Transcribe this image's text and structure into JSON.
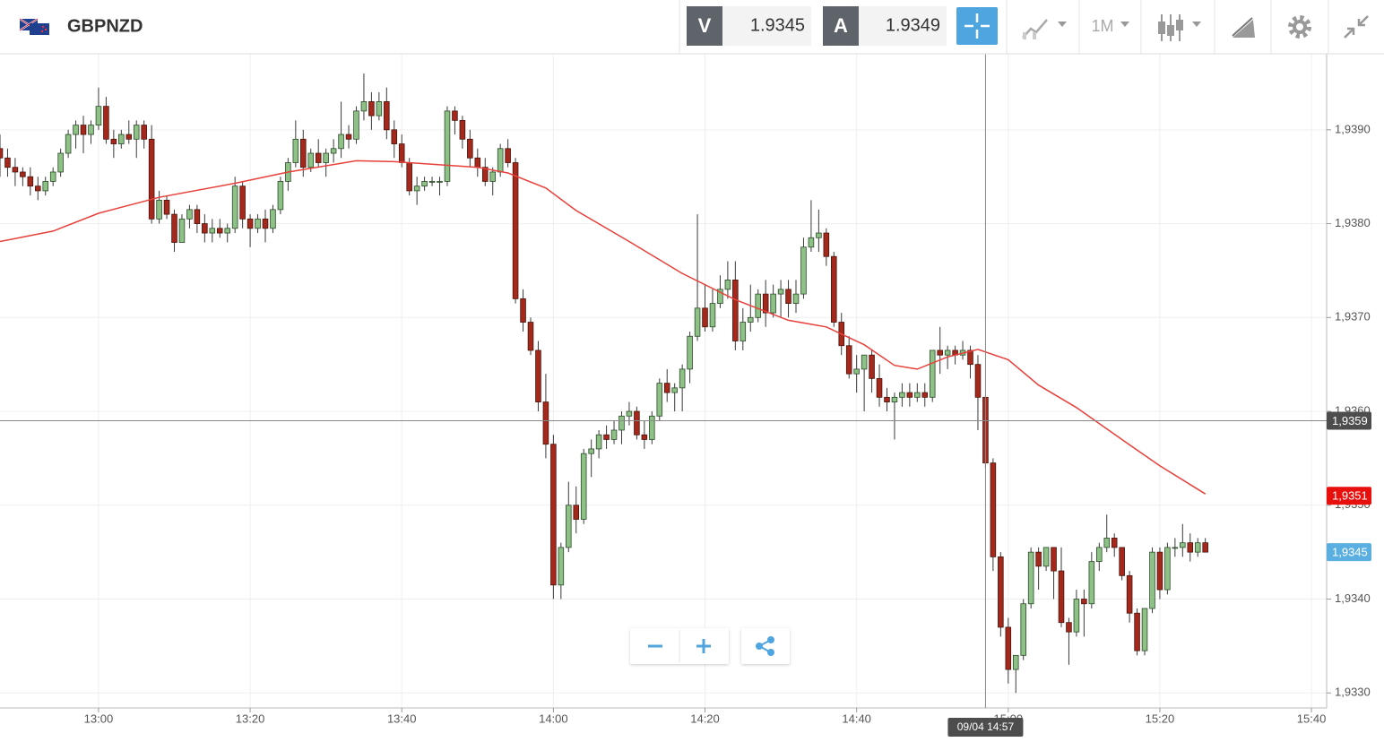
{
  "toolbar": {
    "symbol": "GBPNZD",
    "bid_label": "V",
    "bid": 1.9345,
    "ask_label": "A",
    "ask": 1.9349,
    "timeframe": "1M"
  },
  "chart_data": {
    "type": "candlestick",
    "title": "GBPNZD",
    "x": [
      "12:47",
      "12:48",
      "12:49",
      "12:50",
      "12:51",
      "12:52",
      "12:53",
      "12:54",
      "12:55",
      "12:56",
      "12:57",
      "12:58",
      "12:59",
      "13:00",
      "13:01",
      "13:02",
      "13:03",
      "13:04",
      "13:05",
      "13:06",
      "13:07",
      "13:08",
      "13:09",
      "13:10",
      "13:11",
      "13:12",
      "13:13",
      "13:14",
      "13:15",
      "13:16",
      "13:17",
      "13:18",
      "13:19",
      "13:20",
      "13:21",
      "13:22",
      "13:23",
      "13:24",
      "13:25",
      "13:26",
      "13:27",
      "13:28",
      "13:29",
      "13:30",
      "13:31",
      "13:32",
      "13:33",
      "13:34",
      "13:35",
      "13:36",
      "13:37",
      "13:38",
      "13:39",
      "13:40",
      "13:41",
      "13:42",
      "13:43",
      "13:44",
      "13:45",
      "13:46",
      "13:47",
      "13:48",
      "13:49",
      "13:50",
      "13:51",
      "13:52",
      "13:53",
      "13:54",
      "13:55",
      "13:56",
      "13:57",
      "13:58",
      "13:59",
      "14:00",
      "14:01",
      "14:02",
      "14:03",
      "14:04",
      "14:05",
      "14:06",
      "14:07",
      "14:08",
      "14:09",
      "14:10",
      "14:11",
      "14:12",
      "14:13",
      "14:14",
      "14:15",
      "14:16",
      "14:17",
      "14:18",
      "14:19",
      "14:20",
      "14:21",
      "14:22",
      "14:23",
      "14:24",
      "14:25",
      "14:26",
      "14:27",
      "14:28",
      "14:29",
      "14:30",
      "14:31",
      "14:32",
      "14:33",
      "14:34",
      "14:35",
      "14:36",
      "14:37",
      "14:38",
      "14:39",
      "14:40",
      "14:41",
      "14:42",
      "14:43",
      "14:44",
      "14:45",
      "14:46",
      "14:47",
      "14:48",
      "14:49",
      "14:50",
      "14:51",
      "14:52",
      "14:53",
      "14:54",
      "14:55",
      "14:56",
      "14:57",
      "14:58",
      "14:59",
      "15:00",
      "15:01",
      "15:02",
      "15:03",
      "15:04",
      "15:05",
      "15:06",
      "15:07",
      "15:08",
      "15:09",
      "15:10",
      "15:11",
      "15:12",
      "15:13",
      "15:14",
      "15:15",
      "15:16",
      "15:17",
      "15:18",
      "15:19",
      "15:20",
      "15:21",
      "15:22",
      "15:23",
      "15:24",
      "15:25",
      "15:26"
    ],
    "ohlc": [
      [
        1.9388,
        1.93895,
        1.9385,
        1.9387
      ],
      [
        1.9387,
        1.9388,
        1.9385,
        1.9386
      ],
      [
        1.9386,
        1.9387,
        1.9384,
        1.93855
      ],
      [
        1.93855,
        1.9386,
        1.9384,
        1.9385
      ],
      [
        1.9385,
        1.9386,
        1.9383,
        1.9384
      ],
      [
        1.9384,
        1.9385,
        1.93825,
        1.93835
      ],
      [
        1.93835,
        1.9385,
        1.9383,
        1.93845
      ],
      [
        1.93845,
        1.9386,
        1.9384,
        1.93855
      ],
      [
        1.93855,
        1.9388,
        1.9385,
        1.93875
      ],
      [
        1.93875,
        1.939,
        1.9387,
        1.93895
      ],
      [
        1.93895,
        1.9391,
        1.9388,
        1.93905
      ],
      [
        1.93905,
        1.93915,
        1.93875,
        1.93895
      ],
      [
        1.93895,
        1.9391,
        1.93885,
        1.93905
      ],
      [
        1.93905,
        1.93945,
        1.939,
        1.93925
      ],
      [
        1.93925,
        1.93935,
        1.93885,
        1.9389
      ],
      [
        1.9389,
        1.939,
        1.9387,
        1.93885
      ],
      [
        1.93885,
        1.939,
        1.9388,
        1.93895
      ],
      [
        1.93895,
        1.9391,
        1.93885,
        1.9389
      ],
      [
        1.9389,
        1.9391,
        1.9387,
        1.93905
      ],
      [
        1.93905,
        1.9391,
        1.9388,
        1.9389
      ],
      [
        1.9389,
        1.93905,
        1.938,
        1.93805
      ],
      [
        1.93805,
        1.93835,
        1.938,
        1.93825
      ],
      [
        1.93825,
        1.9383,
        1.93805,
        1.9381
      ],
      [
        1.9381,
        1.93815,
        1.9377,
        1.9378
      ],
      [
        1.9378,
        1.9381,
        1.9378,
        1.93805
      ],
      [
        1.93805,
        1.9382,
        1.93795,
        1.93815
      ],
      [
        1.93815,
        1.9382,
        1.9379,
        1.938
      ],
      [
        1.938,
        1.9381,
        1.9378,
        1.9379
      ],
      [
        1.9379,
        1.93805,
        1.9378,
        1.93795
      ],
      [
        1.93795,
        1.93805,
        1.93785,
        1.9379
      ],
      [
        1.9379,
        1.938,
        1.9378,
        1.93795
      ],
      [
        1.93795,
        1.9385,
        1.9379,
        1.9384
      ],
      [
        1.9384,
        1.93845,
        1.93795,
        1.93805
      ],
      [
        1.93805,
        1.9381,
        1.93775,
        1.93795
      ],
      [
        1.93795,
        1.9381,
        1.9379,
        1.93805
      ],
      [
        1.93805,
        1.93815,
        1.9378,
        1.93795
      ],
      [
        1.93795,
        1.9382,
        1.9379,
        1.93815
      ],
      [
        1.93815,
        1.9385,
        1.9381,
        1.93845
      ],
      [
        1.93845,
        1.9387,
        1.93835,
        1.93865
      ],
      [
        1.93865,
        1.9391,
        1.9386,
        1.9389
      ],
      [
        1.9389,
        1.939,
        1.9385,
        1.9386
      ],
      [
        1.9386,
        1.9388,
        1.93855,
        1.93875
      ],
      [
        1.93875,
        1.9389,
        1.9386,
        1.93865
      ],
      [
        1.93865,
        1.9388,
        1.9385,
        1.93875
      ],
      [
        1.93875,
        1.9389,
        1.93865,
        1.9388
      ],
      [
        1.9388,
        1.9393,
        1.9387,
        1.93895
      ],
      [
        1.93895,
        1.93905,
        1.9388,
        1.9389
      ],
      [
        1.9389,
        1.93925,
        1.93885,
        1.9392
      ],
      [
        1.9392,
        1.9396,
        1.9391,
        1.9393
      ],
      [
        1.9393,
        1.9394,
        1.939,
        1.93915
      ],
      [
        1.93915,
        1.9394,
        1.9391,
        1.9393
      ],
      [
        1.9393,
        1.93945,
        1.9389,
        1.939
      ],
      [
        1.939,
        1.9391,
        1.9387,
        1.93885
      ],
      [
        1.93885,
        1.93895,
        1.9386,
        1.93865
      ],
      [
        1.93865,
        1.9387,
        1.9383,
        1.93835
      ],
      [
        1.93835,
        1.9385,
        1.9382,
        1.9384
      ],
      [
        1.9384,
        1.9385,
        1.93835,
        1.93845
      ],
      [
        1.93845,
        1.9385,
        1.9384,
        1.93845
      ],
      [
        1.93845,
        1.9385,
        1.9383,
        1.93845
      ],
      [
        1.93845,
        1.93925,
        1.9384,
        1.9392
      ],
      [
        1.9392,
        1.93925,
        1.93895,
        1.9391
      ],
      [
        1.9391,
        1.93915,
        1.9388,
        1.9389
      ],
      [
        1.9389,
        1.939,
        1.9386,
        1.9387
      ],
      [
        1.9387,
        1.9388,
        1.9385,
        1.9386
      ],
      [
        1.9386,
        1.9387,
        1.9384,
        1.93845
      ],
      [
        1.93845,
        1.9386,
        1.9383,
        1.93855
      ],
      [
        1.93855,
        1.93885,
        1.9385,
        1.9388
      ],
      [
        1.9388,
        1.9389,
        1.9386,
        1.93865
      ],
      [
        1.93865,
        1.9387,
        1.93715,
        1.9372
      ],
      [
        1.9372,
        1.9373,
        1.93685,
        1.93695
      ],
      [
        1.93695,
        1.937,
        1.9366,
        1.93665
      ],
      [
        1.93665,
        1.93675,
        1.936,
        1.9361
      ],
      [
        1.9361,
        1.9364,
        1.9355,
        1.93565
      ],
      [
        1.93565,
        1.93575,
        1.934,
        1.93415
      ],
      [
        1.93415,
        1.9346,
        1.934,
        1.93455
      ],
      [
        1.93455,
        1.93525,
        1.9345,
        1.935
      ],
      [
        1.935,
        1.9352,
        1.9347,
        1.93485
      ],
      [
        1.93485,
        1.9356,
        1.9348,
        1.93555
      ],
      [
        1.93555,
        1.9357,
        1.9353,
        1.9356
      ],
      [
        1.9356,
        1.9358,
        1.9355,
        1.93575
      ],
      [
        1.93575,
        1.93585,
        1.9356,
        1.9357
      ],
      [
        1.9357,
        1.9359,
        1.93565,
        1.9358
      ],
      [
        1.9358,
        1.936,
        1.93565,
        1.93595
      ],
      [
        1.93595,
        1.9361,
        1.93585,
        1.936
      ],
      [
        1.936,
        1.93605,
        1.9357,
        1.93575
      ],
      [
        1.93575,
        1.9359,
        1.9356,
        1.9357
      ],
      [
        1.9357,
        1.936,
        1.93565,
        1.93595
      ],
      [
        1.93595,
        1.93635,
        1.9359,
        1.9363
      ],
      [
        1.9363,
        1.93645,
        1.9361,
        1.9362
      ],
      [
        1.9362,
        1.9363,
        1.936,
        1.93625
      ],
      [
        1.93625,
        1.9365,
        1.936,
        1.93645
      ],
      [
        1.93645,
        1.93685,
        1.9363,
        1.9368
      ],
      [
        1.9368,
        1.9381,
        1.93675,
        1.9371
      ],
      [
        1.9371,
        1.93735,
        1.93685,
        1.9369
      ],
      [
        1.9369,
        1.9373,
        1.93685,
        1.93715
      ],
      [
        1.93715,
        1.93745,
        1.9371,
        1.9373
      ],
      [
        1.9373,
        1.9376,
        1.9372,
        1.9374
      ],
      [
        1.9374,
        1.9376,
        1.93665,
        1.93675
      ],
      [
        1.93675,
        1.9371,
        1.93665,
        1.93695
      ],
      [
        1.93695,
        1.93735,
        1.93685,
        1.937
      ],
      [
        1.937,
        1.9373,
        1.93695,
        1.93725
      ],
      [
        1.93725,
        1.9374,
        1.9369,
        1.93705
      ],
      [
        1.93705,
        1.93735,
        1.937,
        1.93725
      ],
      [
        1.93725,
        1.9374,
        1.937,
        1.9373
      ],
      [
        1.9373,
        1.9374,
        1.937,
        1.93715
      ],
      [
        1.93715,
        1.9374,
        1.93705,
        1.93725
      ],
      [
        1.93725,
        1.93785,
        1.9372,
        1.93775
      ],
      [
        1.93775,
        1.93825,
        1.9377,
        1.93785
      ],
      [
        1.93785,
        1.93815,
        1.9377,
        1.9379
      ],
      [
        1.9379,
        1.93795,
        1.93755,
        1.93765
      ],
      [
        1.93765,
        1.9377,
        1.9369,
        1.93695
      ],
      [
        1.93695,
        1.93705,
        1.9366,
        1.9367
      ],
      [
        1.9367,
        1.9368,
        1.93635,
        1.9364
      ],
      [
        1.9364,
        1.9366,
        1.9362,
        1.93645
      ],
      [
        1.93645,
        1.9366,
        1.936,
        1.9366
      ],
      [
        1.9366,
        1.93665,
        1.9362,
        1.93635
      ],
      [
        1.93635,
        1.9365,
        1.93605,
        1.93615
      ],
      [
        1.93615,
        1.93625,
        1.936,
        1.9361
      ],
      [
        1.9361,
        1.9362,
        1.9357,
        1.93615
      ],
      [
        1.93615,
        1.9363,
        1.93605,
        1.9362
      ],
      [
        1.9362,
        1.9363,
        1.93605,
        1.93615
      ],
      [
        1.93615,
        1.9363,
        1.9361,
        1.9362
      ],
      [
        1.9362,
        1.9363,
        1.93605,
        1.93615
      ],
      [
        1.93615,
        1.93665,
        1.9361,
        1.93665
      ],
      [
        1.93665,
        1.9369,
        1.9364,
        1.9366
      ],
      [
        1.9366,
        1.9367,
        1.93645,
        1.93665
      ],
      [
        1.93665,
        1.9367,
        1.9365,
        1.9366
      ],
      [
        1.9366,
        1.93675,
        1.93655,
        1.93665
      ],
      [
        1.93665,
        1.9367,
        1.93635,
        1.9365
      ],
      [
        1.9365,
        1.9366,
        1.9358,
        1.93615
      ],
      [
        1.93615,
        1.93615,
        1.9354,
        1.93545
      ],
      [
        1.93545,
        1.9355,
        1.9343,
        1.93445
      ],
      [
        1.93445,
        1.9345,
        1.9336,
        1.9337
      ],
      [
        1.9337,
        1.9338,
        1.9331,
        1.93325
      ],
      [
        1.93325,
        1.9334,
        1.933,
        1.9334
      ],
      [
        1.9334,
        1.934,
        1.93335,
        1.93395
      ],
      [
        1.93395,
        1.93455,
        1.9339,
        1.9345
      ],
      [
        1.9345,
        1.93455,
        1.9341,
        1.93435
      ],
      [
        1.93435,
        1.93455,
        1.9343,
        1.93455
      ],
      [
        1.93455,
        1.93455,
        1.934,
        1.9343
      ],
      [
        1.9343,
        1.93455,
        1.9337,
        1.93375
      ],
      [
        1.93375,
        1.9338,
        1.9333,
        1.93365
      ],
      [
        1.93365,
        1.9341,
        1.9336,
        1.934
      ],
      [
        1.934,
        1.9341,
        1.9336,
        1.93395
      ],
      [
        1.93395,
        1.9345,
        1.9339,
        1.9344
      ],
      [
        1.9344,
        1.9346,
        1.9343,
        1.93455
      ],
      [
        1.93455,
        1.9349,
        1.9345,
        1.93465
      ],
      [
        1.93465,
        1.9347,
        1.93445,
        1.93455
      ],
      [
        1.93455,
        1.93455,
        1.9342,
        1.93425
      ],
      [
        1.93425,
        1.9343,
        1.93375,
        1.93385
      ],
      [
        1.93385,
        1.9339,
        1.9334,
        1.93345
      ],
      [
        1.93345,
        1.9339,
        1.9334,
        1.9339
      ],
      [
        1.9339,
        1.93455,
        1.93385,
        1.9345
      ],
      [
        1.9345,
        1.93455,
        1.934,
        1.9341
      ],
      [
        1.9341,
        1.9346,
        1.93405,
        1.93455
      ],
      [
        1.93455,
        1.93465,
        1.93445,
        1.93455
      ],
      [
        1.93455,
        1.9348,
        1.93445,
        1.9346
      ],
      [
        1.9346,
        1.9347,
        1.9344,
        1.9345
      ],
      [
        1.9345,
        1.93465,
        1.93445,
        1.9346
      ],
      [
        1.9346,
        1.93465,
        1.9345,
        1.9345
      ]
    ],
    "up_color": "#8dc185",
    "down_color": "#a4281b",
    "ma": {
      "color": "#e8403a",
      "x": [
        "12:47",
        "12:54",
        "13:00",
        "13:08",
        "13:18",
        "13:25",
        "13:34",
        "13:39",
        "13:50",
        "13:54",
        "13:59",
        "14:03",
        "14:10",
        "14:17",
        "14:24",
        "14:31",
        "14:36",
        "14:41",
        "14:45",
        "14:48",
        "14:52",
        "14:56",
        "15:00",
        "15:04",
        "15:09",
        "15:15",
        "15:20",
        "15:26"
      ],
      "values": [
        1.93781,
        1.93792,
        1.93811,
        1.93828,
        1.93843,
        1.93855,
        1.93867,
        1.93866,
        1.9386,
        1.93854,
        1.93838,
        1.93814,
        1.93781,
        1.93747,
        1.93719,
        1.93697,
        1.9369,
        1.93671,
        1.93649,
        1.93645,
        1.93658,
        1.93666,
        1.93655,
        1.93628,
        1.93604,
        1.9357,
        1.93542,
        1.93512
      ]
    },
    "xlim": [
      "12:47",
      "15:42"
    ],
    "xticks": [
      "13:00",
      "13:20",
      "13:40",
      "14:00",
      "14:20",
      "14:40",
      "15:00",
      "15:20",
      "15:40"
    ],
    "ylim": [
      1.93284,
      1.93981
    ],
    "yticks": [
      {
        "value": 1.933,
        "label": "1,9330"
      },
      {
        "value": 1.934,
        "label": "1,9340"
      },
      {
        "value": 1.935,
        "label": "1,9350"
      },
      {
        "value": 1.936,
        "label": "1,9360"
      },
      {
        "value": 1.937,
        "label": "1,9370"
      },
      {
        "value": 1.938,
        "label": "1,9380"
      },
      {
        "value": 1.939,
        "label": "1,9390"
      }
    ],
    "grid": true,
    "crosshair_label": "09/04 14:57",
    "price_tags": [
      {
        "value": 1.9359,
        "label": "1,9359",
        "color": "#4d4d4d"
      },
      {
        "value": 1.9351,
        "label": "1,9351",
        "color": "#e8100c"
      },
      {
        "value": 1.9345,
        "label": "1,9345",
        "color": "#5aafe0"
      }
    ]
  }
}
